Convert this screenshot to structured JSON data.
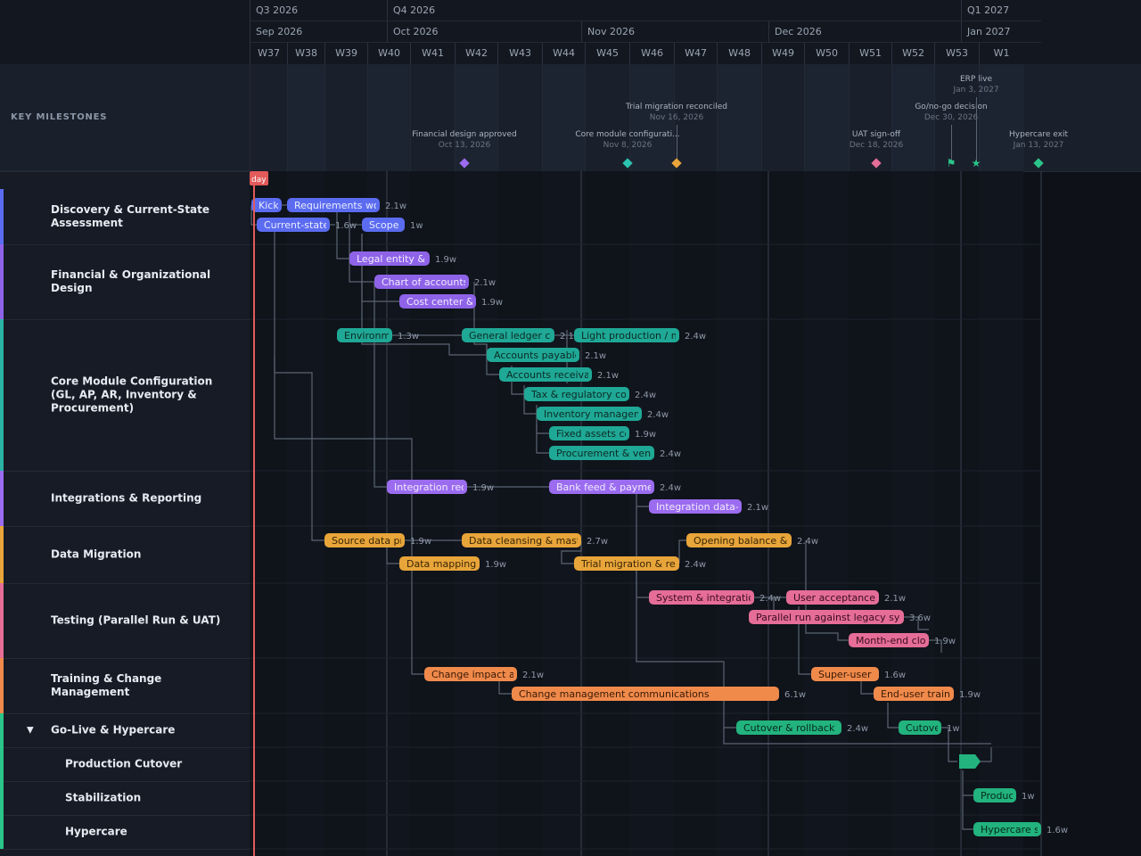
{
  "timeline": {
    "quarters": [
      "Q3 2026",
      "Q4 2026",
      "Q1 2027"
    ],
    "months": [
      "Sep 2026",
      "Oct 2026",
      "Nov 2026",
      "Dec 2026",
      "Jan 2027"
    ],
    "weeks": [
      "W37",
      "W38",
      "W39",
      "W40",
      "W41",
      "W42",
      "W43",
      "W44",
      "W45",
      "W46",
      "W47",
      "W48",
      "W49",
      "W50",
      "W51",
      "W52",
      "W53",
      "W1"
    ],
    "today_label": "day"
  },
  "milestones_title": "KEY MILESTONES",
  "milestones": [
    {
      "name": "Financial design approved",
      "date": "Oct 13, 2026",
      "color": "#9b6cf0",
      "shape": "diamond"
    },
    {
      "name": "Core module configurati...",
      "date": "Nov 8, 2026",
      "color": "#2bc4b0",
      "shape": "diamond"
    },
    {
      "name": "Trial migration reconciled",
      "date": "Nov 16, 2026",
      "color": "#e8a53a",
      "shape": "diamond"
    },
    {
      "name": "UAT sign-off",
      "date": "Dec 18, 2026",
      "color": "#e56d97",
      "shape": "diamond"
    },
    {
      "name": "Go/no-go decision",
      "date": "Dec 30, 2026",
      "color": "#2bc48a",
      "shape": "flag-icon"
    },
    {
      "name": "ERP live",
      "date": "Jan 3, 2027",
      "color": "#2bc48a",
      "shape": "star-icon"
    },
    {
      "name": "Hypercare exit",
      "date": "Jan 13, 2027",
      "color": "#2bc48a",
      "shape": "diamond"
    }
  ],
  "rows": [
    {
      "label": "Discovery & Current-State Assessment",
      "color": "#5b6cf0",
      "type": "group"
    },
    {
      "label": "Financial & Organizational Design",
      "color": "#8e63e8",
      "type": "group"
    },
    {
      "label": "Core Module Configuration (GL, AP, AR, Inventory & Procurement)",
      "color": "#2bb3a3",
      "type": "group"
    },
    {
      "label": "Integrations & Reporting",
      "color": "#9b6cf0",
      "type": "group"
    },
    {
      "label": "Data Migration",
      "color": "#e8a53a",
      "type": "group"
    },
    {
      "label": "Testing (Parallel Run & UAT)",
      "color": "#e56d97",
      "type": "group"
    },
    {
      "label": "Training & Change Management",
      "color": "#f08a4b",
      "type": "group"
    },
    {
      "label": "Go-Live & Hypercare",
      "color": "#2bc48a",
      "type": "group",
      "expanded": true
    },
    {
      "label": "Production Cutover",
      "color": "#2bc48a",
      "type": "sub"
    },
    {
      "label": "Stabilization",
      "color": "#2bc48a",
      "type": "sub"
    },
    {
      "label": "Hypercare",
      "color": "#2bc48a",
      "type": "sub"
    }
  ],
  "tasks": [
    {
      "name": "Kickoff",
      "dur": "",
      "color": "#5b6cf0",
      "text": "#e9ecff"
    },
    {
      "name": "Requirements workshops",
      "dur": "2.1w",
      "color": "#5b6cf0",
      "text": "#e9ecff"
    },
    {
      "name": "Current-state analysis",
      "dur": "1.6w",
      "color": "#5b6cf0",
      "text": "#e9ecff"
    },
    {
      "name": "Scope",
      "dur": "1w",
      "color": "#5b6cf0",
      "text": "#e9ecff"
    },
    {
      "name": "Legal entity & org design",
      "dur": "1.9w",
      "color": "#8e63e8",
      "text": "#f1eaff"
    },
    {
      "name": "Chart of accounts",
      "dur": "2.1w",
      "color": "#8e63e8",
      "text": "#f1eaff"
    },
    {
      "name": "Cost center & profit center",
      "dur": "1.9w",
      "color": "#8e63e8",
      "text": "#f1eaff"
    },
    {
      "name": "Environment setup",
      "dur": "1.3w",
      "color": "#1fa895",
      "text": "#0d2a26"
    },
    {
      "name": "General ledger configuration",
      "dur": "2.1w",
      "color": "#1fa895",
      "text": "#0d2a26"
    },
    {
      "name": "Light production / mock",
      "dur": "2.4w",
      "color": "#1fa895",
      "text": "#0d2a26"
    },
    {
      "name": "Accounts payable",
      "dur": "2.1w",
      "color": "#1fa895",
      "text": "#0d2a26"
    },
    {
      "name": "Accounts receivable",
      "dur": "2.1w",
      "color": "#1fa895",
      "text": "#0d2a26"
    },
    {
      "name": "Tax & regulatory configuration",
      "dur": "2.4w",
      "color": "#1fa895",
      "text": "#0d2a26"
    },
    {
      "name": "Inventory management",
      "dur": "2.4w",
      "color": "#1fa895",
      "text": "#0d2a26"
    },
    {
      "name": "Fixed assets configuration",
      "dur": "1.9w",
      "color": "#1fa895",
      "text": "#0d2a26"
    },
    {
      "name": "Procurement & vendor",
      "dur": "2.4w",
      "color": "#1fa895",
      "text": "#0d2a26"
    },
    {
      "name": "Integration requirements",
      "dur": "1.9w",
      "color": "#9b6cf0",
      "text": "#f1eaff"
    },
    {
      "name": "Bank feed & payment files",
      "dur": "2.4w",
      "color": "#9b6cf0",
      "text": "#f1eaff"
    },
    {
      "name": "Integration data-flow testing",
      "dur": "2.1w",
      "color": "#9b6cf0",
      "text": "#f1eaff"
    },
    {
      "name": "Source data profiling",
      "dur": "1.9w",
      "color": "#e8a53a",
      "text": "#3a2606"
    },
    {
      "name": "Data cleansing & master data",
      "dur": "2.7w",
      "color": "#e8a53a",
      "text": "#3a2606"
    },
    {
      "name": "Opening balance & conversion",
      "dur": "2.4w",
      "color": "#e8a53a",
      "text": "#3a2606"
    },
    {
      "name": "Data mapping",
      "dur": "1.9w",
      "color": "#e8a53a",
      "text": "#3a2606"
    },
    {
      "name": "Trial migration & reconciliation",
      "dur": "2.4w",
      "color": "#e8a53a",
      "text": "#3a2606"
    },
    {
      "name": "System & integration testing",
      "dur": "2.4w",
      "color": "#e56d97",
      "text": "#3a0c1d"
    },
    {
      "name": "User acceptance testing",
      "dur": "2.1w",
      "color": "#e56d97",
      "text": "#3a0c1d"
    },
    {
      "name": "Parallel run against legacy system",
      "dur": "3.6w",
      "color": "#e56d97",
      "text": "#3a0c1d"
    },
    {
      "name": "Month-end close",
      "dur": "1.9w",
      "color": "#e56d97",
      "text": "#3a0c1d"
    },
    {
      "name": "Change impact assessment",
      "dur": "2.1w",
      "color": "#f08a4b",
      "text": "#3a1a06"
    },
    {
      "name": "Change management communications",
      "dur": "6.1w",
      "color": "#f08a4b",
      "text": "#3a1a06"
    },
    {
      "name": "Super-user (train-the-trainer)",
      "dur": "1.6w",
      "color": "#f08a4b",
      "text": "#3a1a06"
    },
    {
      "name": "End-user training",
      "dur": "1.9w",
      "color": "#f08a4b",
      "text": "#3a1a06"
    },
    {
      "name": "Cutover & rollback plan",
      "dur": "2.4w",
      "color": "#22b37e",
      "text": "#06281b"
    },
    {
      "name": "Cutover rehearsal",
      "dur": "1w",
      "color": "#22b37e",
      "text": "#06281b"
    },
    {
      "name": "Production support",
      "dur": "1w",
      "color": "#22b37e",
      "text": "#06281b"
    },
    {
      "name": "Hypercare support",
      "dur": "1.6w",
      "color": "#22b37e",
      "text": "#06281b"
    }
  ]
}
